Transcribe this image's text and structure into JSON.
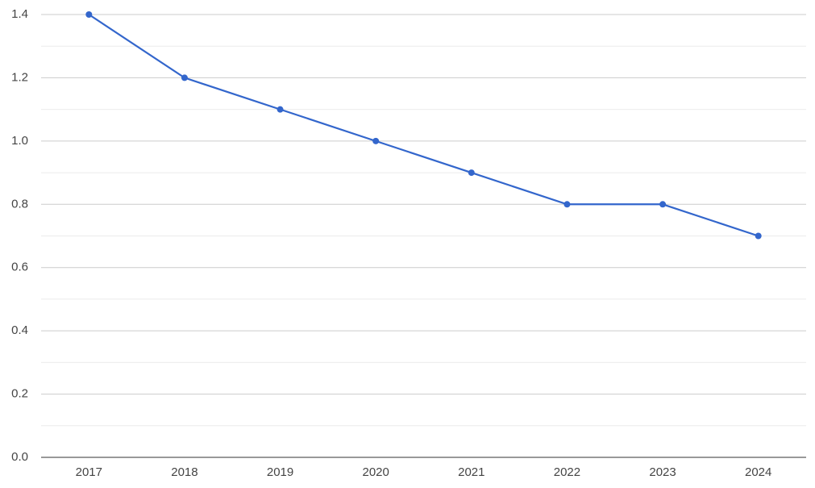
{
  "chart_data": {
    "type": "line",
    "categories": [
      "2017",
      "2018",
      "2019",
      "2020",
      "2021",
      "2022",
      "2023",
      "2024"
    ],
    "series": [
      {
        "color": "#3366cc",
        "values": [
          1.4,
          1.2,
          1.1,
          1.0,
          0.9,
          0.8,
          0.8,
          0.7
        ]
      }
    ],
    "ylim": [
      0,
      1.4
    ],
    "yticks": [
      {
        "value": 0,
        "label": "0.0"
      },
      0.2,
      0.4,
      0.6,
      0.8,
      {
        "value": 1,
        "label": "1.0"
      },
      1.2,
      1.4
    ],
    "minor_yticks": [
      0.1,
      0.3,
      0.5,
      0.7,
      0.9,
      1.1,
      1.3
    ],
    "grid": true
  }
}
